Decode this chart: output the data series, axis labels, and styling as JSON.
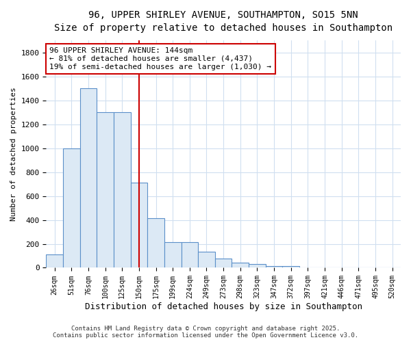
{
  "title": "96, UPPER SHIRLEY AVENUE, SOUTHAMPTON, SO15 5NN",
  "subtitle": "Size of property relative to detached houses in Southampton",
  "xlabel": "Distribution of detached houses by size in Southampton",
  "ylabel": "Number of detached properties",
  "categories": [
    "26sqm",
    "51sqm",
    "76sqm",
    "100sqm",
    "125sqm",
    "150sqm",
    "175sqm",
    "199sqm",
    "224sqm",
    "249sqm",
    "273sqm",
    "298sqm",
    "323sqm",
    "347sqm",
    "372sqm",
    "397sqm",
    "421sqm",
    "446sqm",
    "471sqm",
    "495sqm",
    "520sqm"
  ],
  "values": [
    110,
    1000,
    1500,
    1300,
    1300,
    710,
    415,
    215,
    215,
    135,
    75,
    40,
    30,
    15,
    15,
    0,
    0,
    0,
    0,
    0,
    0
  ],
  "bar_color": "#dce9f5",
  "bar_edge_color": "#5b8fc9",
  "bar_linewidth": 0.8,
  "vline_x": 5,
  "vline_color": "#cc0000",
  "vline_linewidth": 1.5,
  "annotation_text": "96 UPPER SHIRLEY AVENUE: 144sqm\n← 81% of detached houses are smaller (4,437)\n19% of semi-detached houses are larger (1,030) →",
  "annotation_box_color": "white",
  "annotation_box_edgecolor": "#cc0000",
  "ylim": [
    0,
    1900
  ],
  "yticks": [
    0,
    200,
    400,
    600,
    800,
    1000,
    1200,
    1400,
    1600,
    1800
  ],
  "background_color": "#ffffff",
  "grid_color": "#d0dff0",
  "footnote1": "Contains HM Land Registry data © Crown copyright and database right 2025.",
  "footnote2": "Contains public sector information licensed under the Open Government Licence v3.0."
}
